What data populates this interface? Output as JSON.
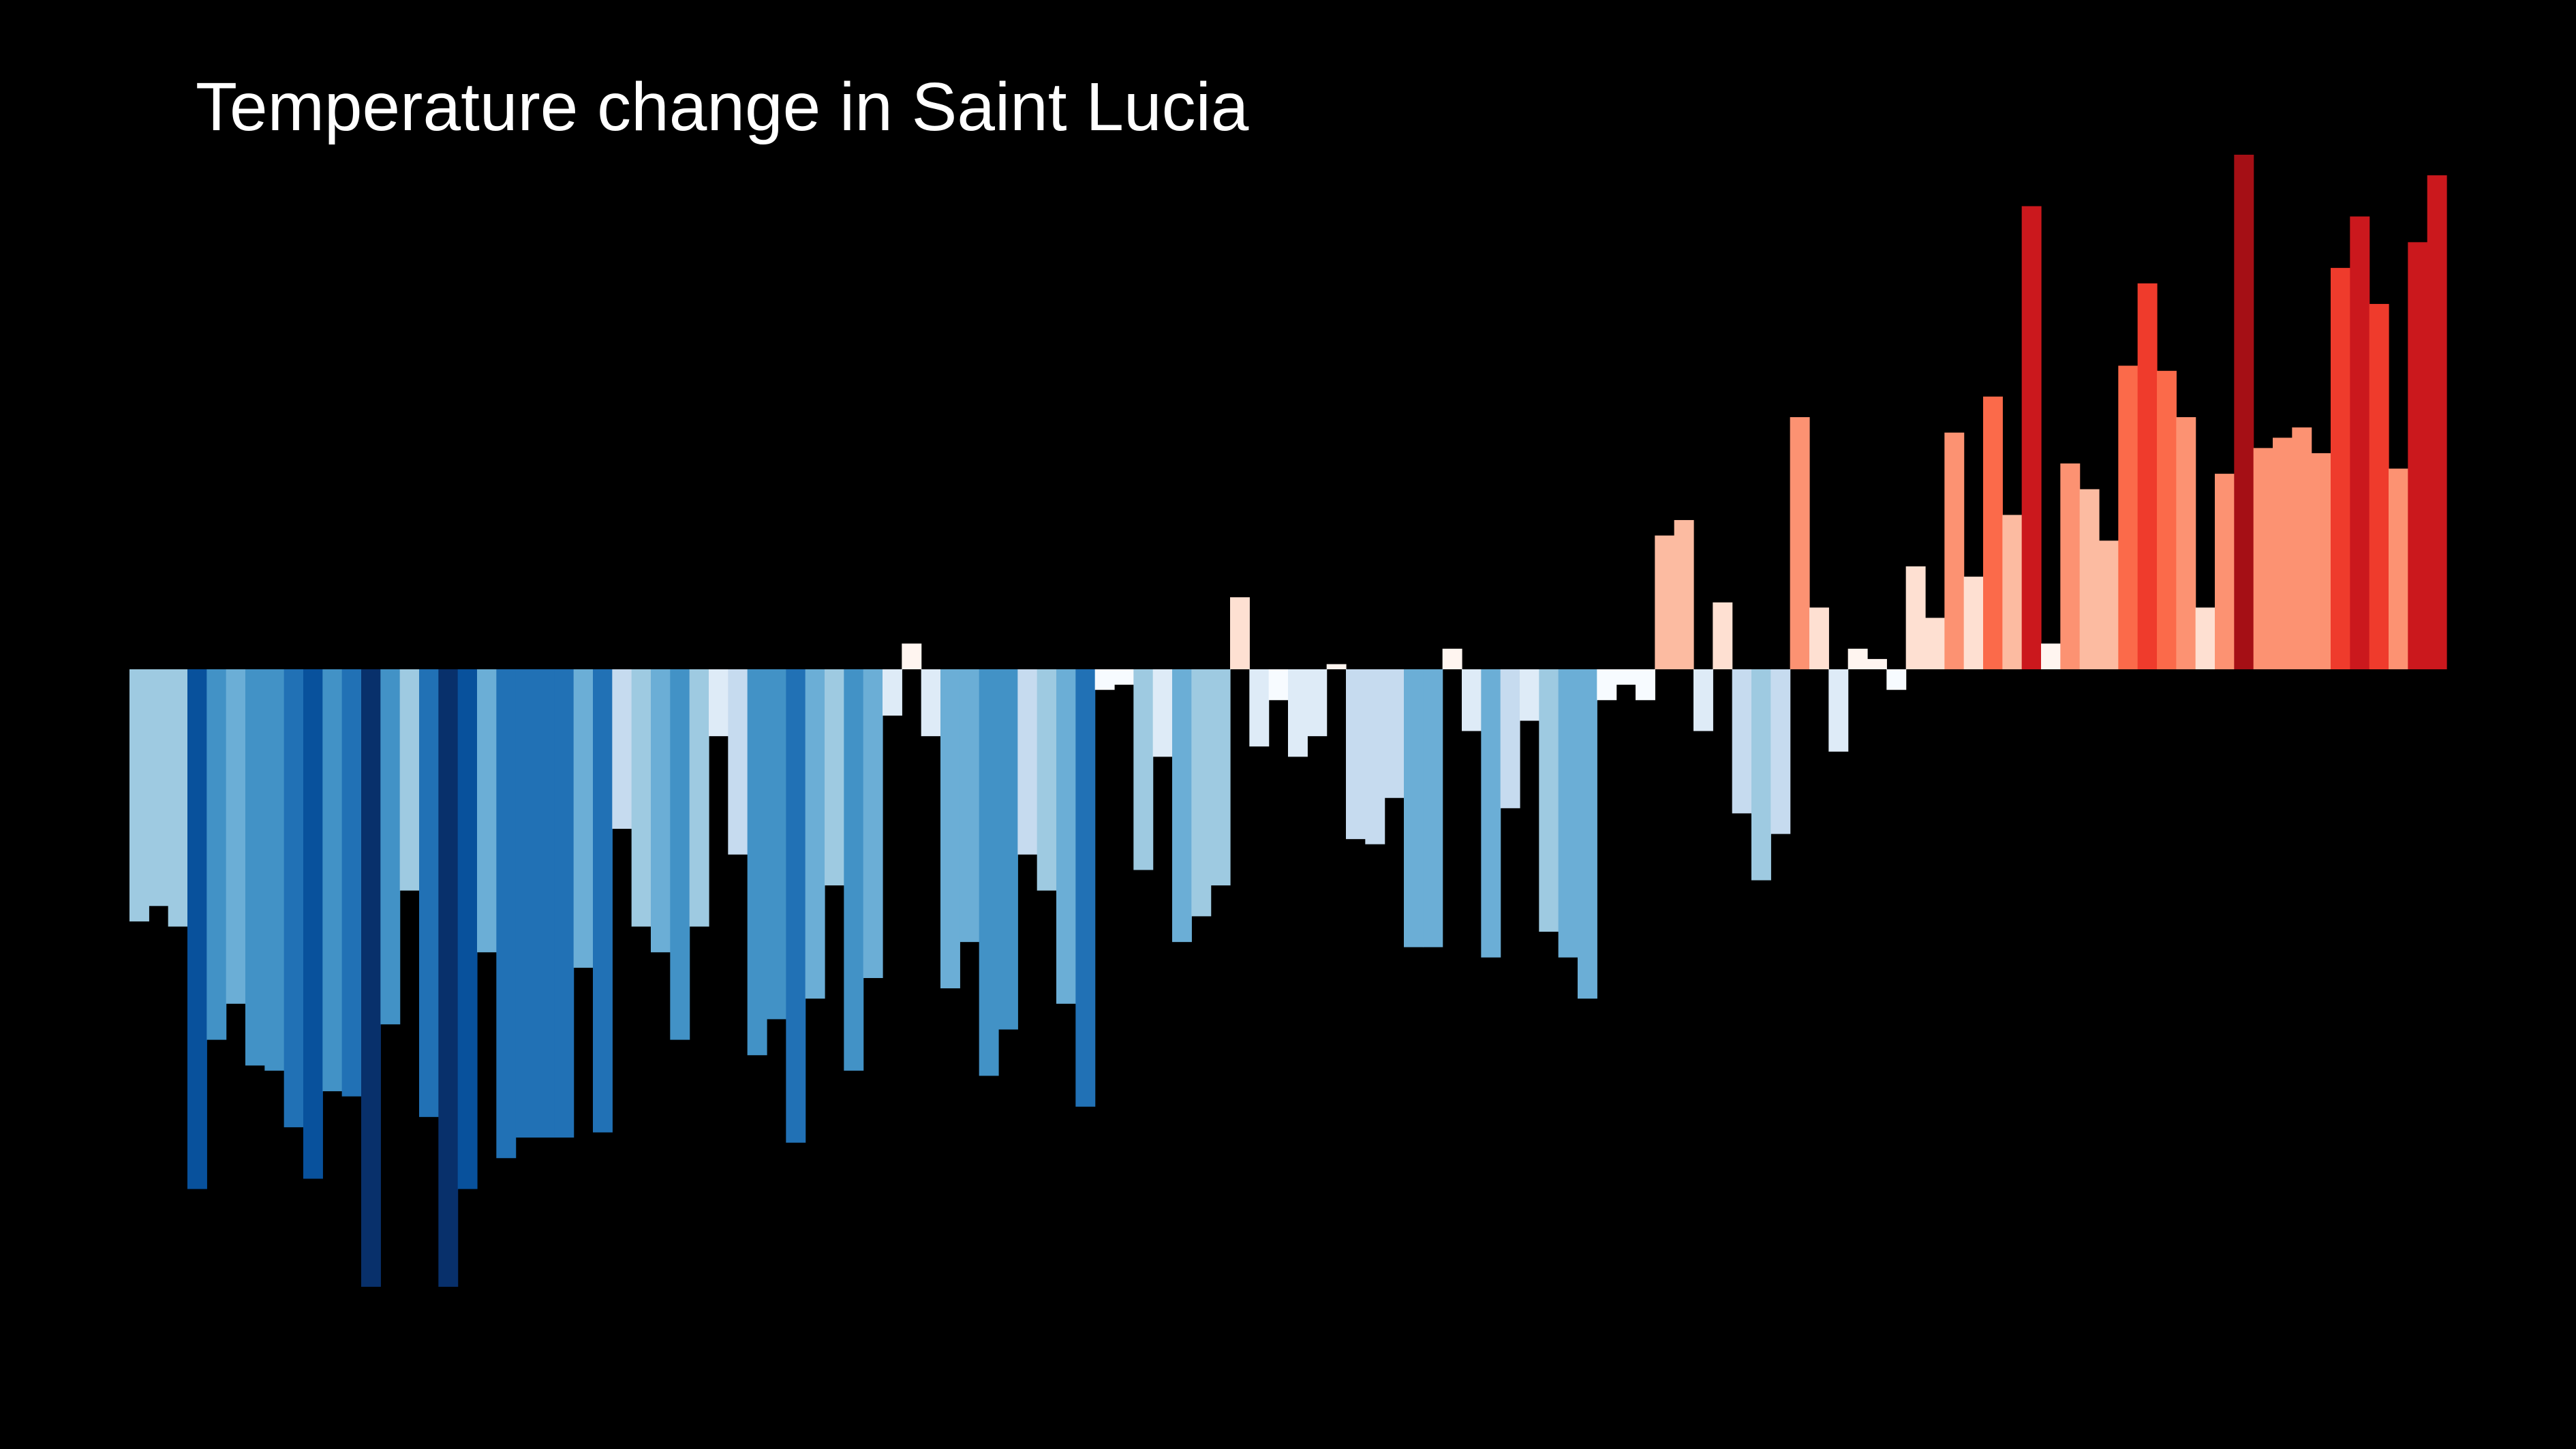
{
  "chart_data": {
    "type": "bar",
    "title": "Temperature change in Saint Lucia",
    "xlabel": "",
    "ylabel": "",
    "ylim": [
      -1.2,
      1.0
    ],
    "grid": false,
    "legend": "none",
    "values": [
      -0.49,
      -0.46,
      -0.5,
      -1.01,
      -0.72,
      -0.65,
      -0.77,
      -0.78,
      -0.89,
      -0.99,
      -0.82,
      -0.83,
      -1.2,
      -0.69,
      -0.43,
      -0.87,
      -1.2,
      -1.01,
      -0.55,
      -0.95,
      -0.91,
      -0.91,
      -0.91,
      -0.58,
      -0.9,
      -0.31,
      -0.5,
      -0.55,
      -0.72,
      -0.5,
      -0.13,
      -0.36,
      -0.75,
      -0.68,
      -0.92,
      -0.64,
      -0.42,
      -0.78,
      -0.6,
      -0.09,
      0.05,
      -0.13,
      -0.62,
      -0.53,
      -0.79,
      -0.7,
      -0.36,
      -0.43,
      -0.65,
      -0.85,
      -0.04,
      -0.03,
      -0.39,
      -0.17,
      -0.53,
      -0.48,
      -0.42,
      0.14,
      -0.15,
      -0.06,
      -0.17,
      -0.13,
      0.01,
      -0.33,
      -0.34,
      -0.25,
      -0.54,
      -0.54,
      0.04,
      -0.12,
      -0.56,
      -0.27,
      -0.1,
      -0.51,
      -0.56,
      -0.64,
      -0.06,
      -0.03,
      -0.06,
      0.26,
      0.29,
      -0.12,
      0.13,
      -0.28,
      -0.41,
      -0.32,
      0.49,
      0.12,
      -0.16,
      0.04,
      0.02,
      -0.04,
      0.2,
      0.1,
      0.46,
      0.18,
      0.53,
      0.3,
      0.9,
      0.05,
      0.4,
      0.35,
      0.25,
      0.59,
      0.75,
      0.58,
      0.49,
      0.12,
      0.38,
      1.0,
      0.43,
      0.45,
      0.47,
      0.42,
      0.78,
      0.88,
      0.71,
      0.39,
      0.83,
      0.96
    ]
  }
}
